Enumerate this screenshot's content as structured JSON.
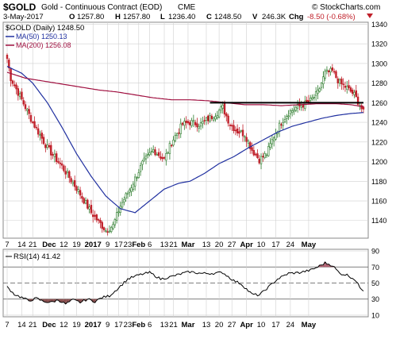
{
  "header": {
    "symbol": "$GOLD",
    "desc": "Gold - Continuous Contract (EOD)",
    "exchange": "CME",
    "brand": "© StockCharts.com",
    "date": "3-May-2017",
    "quote": [
      {
        "key": "O",
        "val": "1257.80"
      },
      {
        "key": "H",
        "val": "1257.80"
      },
      {
        "key": "L",
        "val": "1236.40"
      },
      {
        "key": "C",
        "val": "1248.50"
      },
      {
        "key": "V",
        "val": "246.3K"
      },
      {
        "key": "Chg",
        "val": "-8.50 (-0.68%)"
      }
    ]
  },
  "colors": {
    "up": "#2e7d2e",
    "down": "#c0202a",
    "ma50": "#2030a0",
    "ma200": "#a01040",
    "rsi": "#000000",
    "rsi_fill_low": "#8a5050",
    "rsi_fill_high": "#b06070",
    "grid": "#d0d0d0"
  },
  "chart_data": [
    {
      "type": "candlestick",
      "title": "$GOLD (Daily) 1248.50",
      "legend_placement": "top-left",
      "ylim": [
        1122,
        1342
      ],
      "yticks": [
        1140,
        1160,
        1180,
        1200,
        1220,
        1240,
        1260,
        1280,
        1300,
        1320,
        1340
      ],
      "grid": true,
      "x_ticks": [
        "7",
        "14",
        "21",
        "Dec",
        "12",
        "19",
        "2017",
        "9",
        "17",
        "23",
        "Feb",
        "6",
        "13",
        "21",
        "Mar",
        "13",
        "20",
        "27",
        "Apr",
        "10",
        "17",
        "24",
        "May"
      ],
      "x_bold_ticks": [
        "Dec",
        "2017",
        "Feb",
        "Mar",
        "Apr",
        "May"
      ],
      "series": [
        {
          "name": "$GOLD (Daily) 1248.50",
          "kind": "price",
          "close_anchors": [
            [
              0,
              1305
            ],
            [
              2,
              1285
            ],
            [
              8,
              1263
            ],
            [
              14,
              1240
            ],
            [
              22,
              1214
            ],
            [
              30,
              1195
            ],
            [
              38,
              1173
            ],
            [
              46,
              1148
            ],
            [
              54,
              1130
            ],
            [
              58,
              1135
            ],
            [
              62,
              1155
            ],
            [
              68,
              1175
            ],
            [
              74,
              1198
            ],
            [
              80,
              1212
            ],
            [
              86,
              1202
            ],
            [
              90,
              1220
            ],
            [
              96,
              1238
            ],
            [
              100,
              1240
            ],
            [
              106,
              1238
            ],
            [
              112,
              1246
            ],
            [
              118,
              1255
            ],
            [
              122,
              1238
            ],
            [
              126,
              1231
            ],
            [
              130,
              1228
            ],
            [
              134,
              1212
            ],
            [
              138,
              1202
            ],
            [
              142,
              1208
            ],
            [
              146,
              1226
            ],
            [
              150,
              1240
            ],
            [
              154,
              1250
            ],
            [
              158,
              1255
            ],
            [
              162,
              1258
            ],
            [
              166,
              1262
            ],
            [
              170,
              1270
            ],
            [
              174,
              1290
            ],
            [
              178,
              1292
            ],
            [
              182,
              1280
            ],
            [
              186,
              1275
            ],
            [
              190,
              1268
            ],
            [
              193,
              1258
            ],
            [
              195,
              1250
            ]
          ]
        },
        {
          "name": "MA(50) 1250.13",
          "kind": "ma50",
          "anchors": [
            [
              0,
              1297
            ],
            [
              8,
              1290
            ],
            [
              14,
              1280
            ],
            [
              22,
              1260
            ],
            [
              30,
              1235
            ],
            [
              38,
              1208
            ],
            [
              46,
              1185
            ],
            [
              54,
              1165
            ],
            [
              62,
              1152
            ],
            [
              70,
              1148
            ],
            [
              78,
              1160
            ],
            [
              86,
              1172
            ],
            [
              94,
              1178
            ],
            [
              100,
              1180
            ],
            [
              108,
              1188
            ],
            [
              116,
              1198
            ],
            [
              124,
              1205
            ],
            [
              132,
              1214
            ],
            [
              140,
              1222
            ],
            [
              148,
              1230
            ],
            [
              156,
              1236
            ],
            [
              164,
              1240
            ],
            [
              172,
              1244
            ],
            [
              180,
              1247
            ],
            [
              188,
              1249
            ],
            [
              195,
              1250
            ]
          ]
        },
        {
          "name": "MA(200) 1256.08",
          "kind": "ma200",
          "anchors": [
            [
              0,
              1291
            ],
            [
              10,
              1285
            ],
            [
              20,
              1282
            ],
            [
              30,
              1279
            ],
            [
              40,
              1276
            ],
            [
              50,
              1273
            ],
            [
              60,
              1271
            ],
            [
              70,
              1268
            ],
            [
              80,
              1265
            ],
            [
              90,
              1263
            ],
            [
              100,
              1263
            ],
            [
              110,
              1262
            ],
            [
              120,
              1260
            ],
            [
              130,
              1258
            ],
            [
              140,
              1258
            ],
            [
              150,
              1257
            ],
            [
              160,
              1258
            ],
            [
              170,
              1259
            ],
            [
              180,
              1259
            ],
            [
              188,
              1258
            ],
            [
              195,
              1256
            ]
          ]
        }
      ],
      "annotations": [
        {
          "type": "horizontal-line",
          "y": 1260,
          "x_from": 111,
          "x_to": 195,
          "color": "#000000"
        }
      ]
    },
    {
      "type": "line",
      "title": "RSI(14) 41.42",
      "ylim": [
        8,
        92
      ],
      "yticks": [
        10,
        30,
        50,
        70,
        90
      ],
      "levels": [
        30,
        50,
        70
      ],
      "grid": true,
      "series": [
        {
          "name": "RSI(14) 41.42",
          "anchors": [
            [
              0,
              45
            ],
            [
              4,
              36
            ],
            [
              8,
              32
            ],
            [
              12,
              28
            ],
            [
              16,
              31
            ],
            [
              20,
              27
            ],
            [
              24,
              26
            ],
            [
              28,
              29
            ],
            [
              32,
              24
            ],
            [
              36,
              29
            ],
            [
              40,
              26
            ],
            [
              44,
              30
            ],
            [
              48,
              27
            ],
            [
              52,
              32
            ],
            [
              56,
              34
            ],
            [
              60,
              42
            ],
            [
              66,
              55
            ],
            [
              72,
              60
            ],
            [
              78,
              63
            ],
            [
              84,
              55
            ],
            [
              90,
              58
            ],
            [
              96,
              62
            ],
            [
              100,
              64
            ],
            [
              106,
              62
            ],
            [
              112,
              62
            ],
            [
              118,
              63
            ],
            [
              124,
              53
            ],
            [
              128,
              49
            ],
            [
              134,
              36
            ],
            [
              138,
              35
            ],
            [
              142,
              43
            ],
            [
              148,
              55
            ],
            [
              154,
              62
            ],
            [
              160,
              63
            ],
            [
              166,
              66
            ],
            [
              170,
              70
            ],
            [
              174,
              75
            ],
            [
              178,
              72
            ],
            [
              182,
              62
            ],
            [
              186,
              60
            ],
            [
              190,
              55
            ],
            [
              193,
              45
            ],
            [
              195,
              41
            ]
          ]
        }
      ]
    }
  ]
}
